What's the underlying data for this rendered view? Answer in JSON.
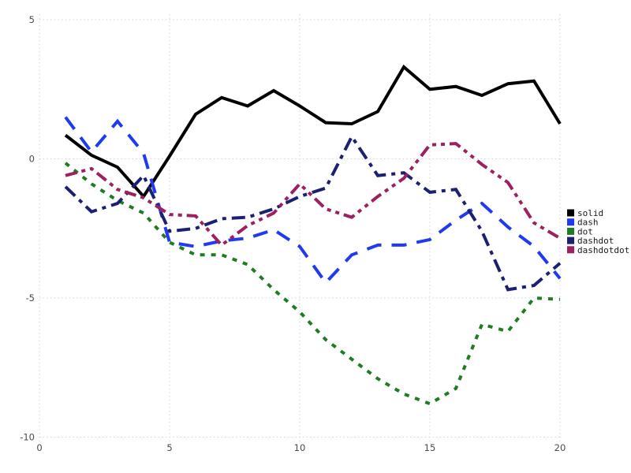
{
  "chart_data": {
    "type": "line",
    "title": "",
    "xlabel": "",
    "ylabel": "",
    "x": [
      1,
      2,
      3,
      4,
      5,
      6,
      7,
      8,
      9,
      10,
      11,
      12,
      13,
      14,
      15,
      16,
      17,
      18,
      19,
      20
    ],
    "series": [
      {
        "name": "solid",
        "color": "#000000",
        "style": "solid",
        "values": [
          0.85,
          0.13,
          -0.3,
          -1.35,
          0.1,
          1.6,
          2.2,
          1.9,
          2.45,
          1.9,
          1.3,
          1.26,
          1.7,
          3.3,
          2.5,
          2.6,
          2.28,
          2.7,
          2.8,
          1.26
        ]
      },
      {
        "name": "dash",
        "color": "#1f3af0",
        "style": "dash",
        "values": [
          1.5,
          0.25,
          1.35,
          0.2,
          -3.0,
          -3.15,
          -2.95,
          -2.85,
          -2.55,
          -3.15,
          -4.45,
          -3.45,
          -3.1,
          -3.1,
          -2.9,
          -2.2,
          -1.6,
          -2.45,
          -3.15,
          -4.3
        ]
      },
      {
        "name": "dot",
        "color": "#1e7d22",
        "style": "dot",
        "values": [
          -0.15,
          -0.9,
          -1.5,
          -1.95,
          -3.0,
          -3.45,
          -3.45,
          -3.8,
          -4.7,
          -5.5,
          -6.5,
          -7.2,
          -7.9,
          -8.45,
          -8.8,
          -8.25,
          -5.95,
          -6.2,
          -5.0,
          -5.05
        ]
      },
      {
        "name": "dashdot",
        "color": "#1b2070",
        "style": "dashdot",
        "values": [
          -1.0,
          -1.9,
          -1.6,
          -0.6,
          -2.6,
          -2.5,
          -2.15,
          -2.1,
          -1.8,
          -1.35,
          -1.05,
          0.8,
          -0.6,
          -0.5,
          -1.2,
          -1.1,
          -2.6,
          -4.7,
          -4.55,
          -3.75
        ]
      },
      {
        "name": "dashdotdot",
        "color": "#9b2160",
        "style": "dashdotdot",
        "values": [
          -0.6,
          -0.35,
          -1.1,
          -1.4,
          -2.0,
          -2.05,
          -3.1,
          -2.4,
          -1.95,
          -0.9,
          -1.8,
          -2.1,
          -1.35,
          -0.7,
          0.5,
          0.55,
          -0.2,
          -0.85,
          -2.3,
          -2.85
        ]
      }
    ],
    "x_ticks": [
      0,
      5,
      10,
      15,
      20
    ],
    "y_ticks": [
      -10,
      -5,
      0,
      5
    ],
    "xlim": [
      0,
      20
    ],
    "ylim": [
      -10,
      5
    ],
    "grid": "dotted",
    "legend_position": "right-outside",
    "legend_labels": [
      "solid",
      "dash",
      "dot",
      "dashdot",
      "dashdotdot"
    ]
  },
  "colors": {
    "background": "#ffffff",
    "grid": "#d2d2e6",
    "tick_text": "#494949",
    "legend_text": "#1a1a1a"
  }
}
